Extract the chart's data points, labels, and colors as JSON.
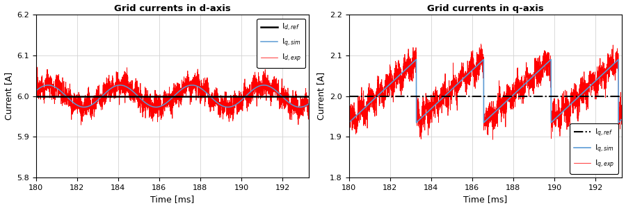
{
  "title_left": "Grid currents in d-axis",
  "title_right": "Grid currents in q-axis",
  "xlabel": "Time [ms]",
  "ylabel": "Current [A]",
  "xlim": [
    180,
    193.3
  ],
  "xticks": [
    180,
    182,
    184,
    186,
    188,
    190,
    192
  ],
  "ylim_left": [
    5.8,
    6.2
  ],
  "yticks_left": [
    5.8,
    5.9,
    6.0,
    6.1,
    6.2
  ],
  "ylim_right": [
    1.8,
    2.2
  ],
  "yticks_right": [
    1.8,
    1.9,
    2.0,
    2.1,
    2.2
  ],
  "d_ref_value": 6.0,
  "q_ref_value": 2.0,
  "color_ref_d": "#000000",
  "color_sim": "#5B9BD5",
  "color_exp": "#FF0000",
  "color_ref_q": "#000000",
  "legend_left": [
    "I$_{d,ref}$",
    "I$_{q,sim}$",
    "I$_{d,exp}$"
  ],
  "legend_right": [
    "I$_{q,ref}$",
    "I$_{q,sim}$",
    "I$_{q,exp}$"
  ],
  "grid_color": "#D3D3D3",
  "background_color": "#FFFFFF",
  "d_sim_period": 3.5,
  "d_sim_amplitude": 0.027,
  "d_sim_phase": 0.5,
  "q_sim_period": 3.28,
  "q_sim_low": 1.935,
  "q_sim_high": 2.09
}
